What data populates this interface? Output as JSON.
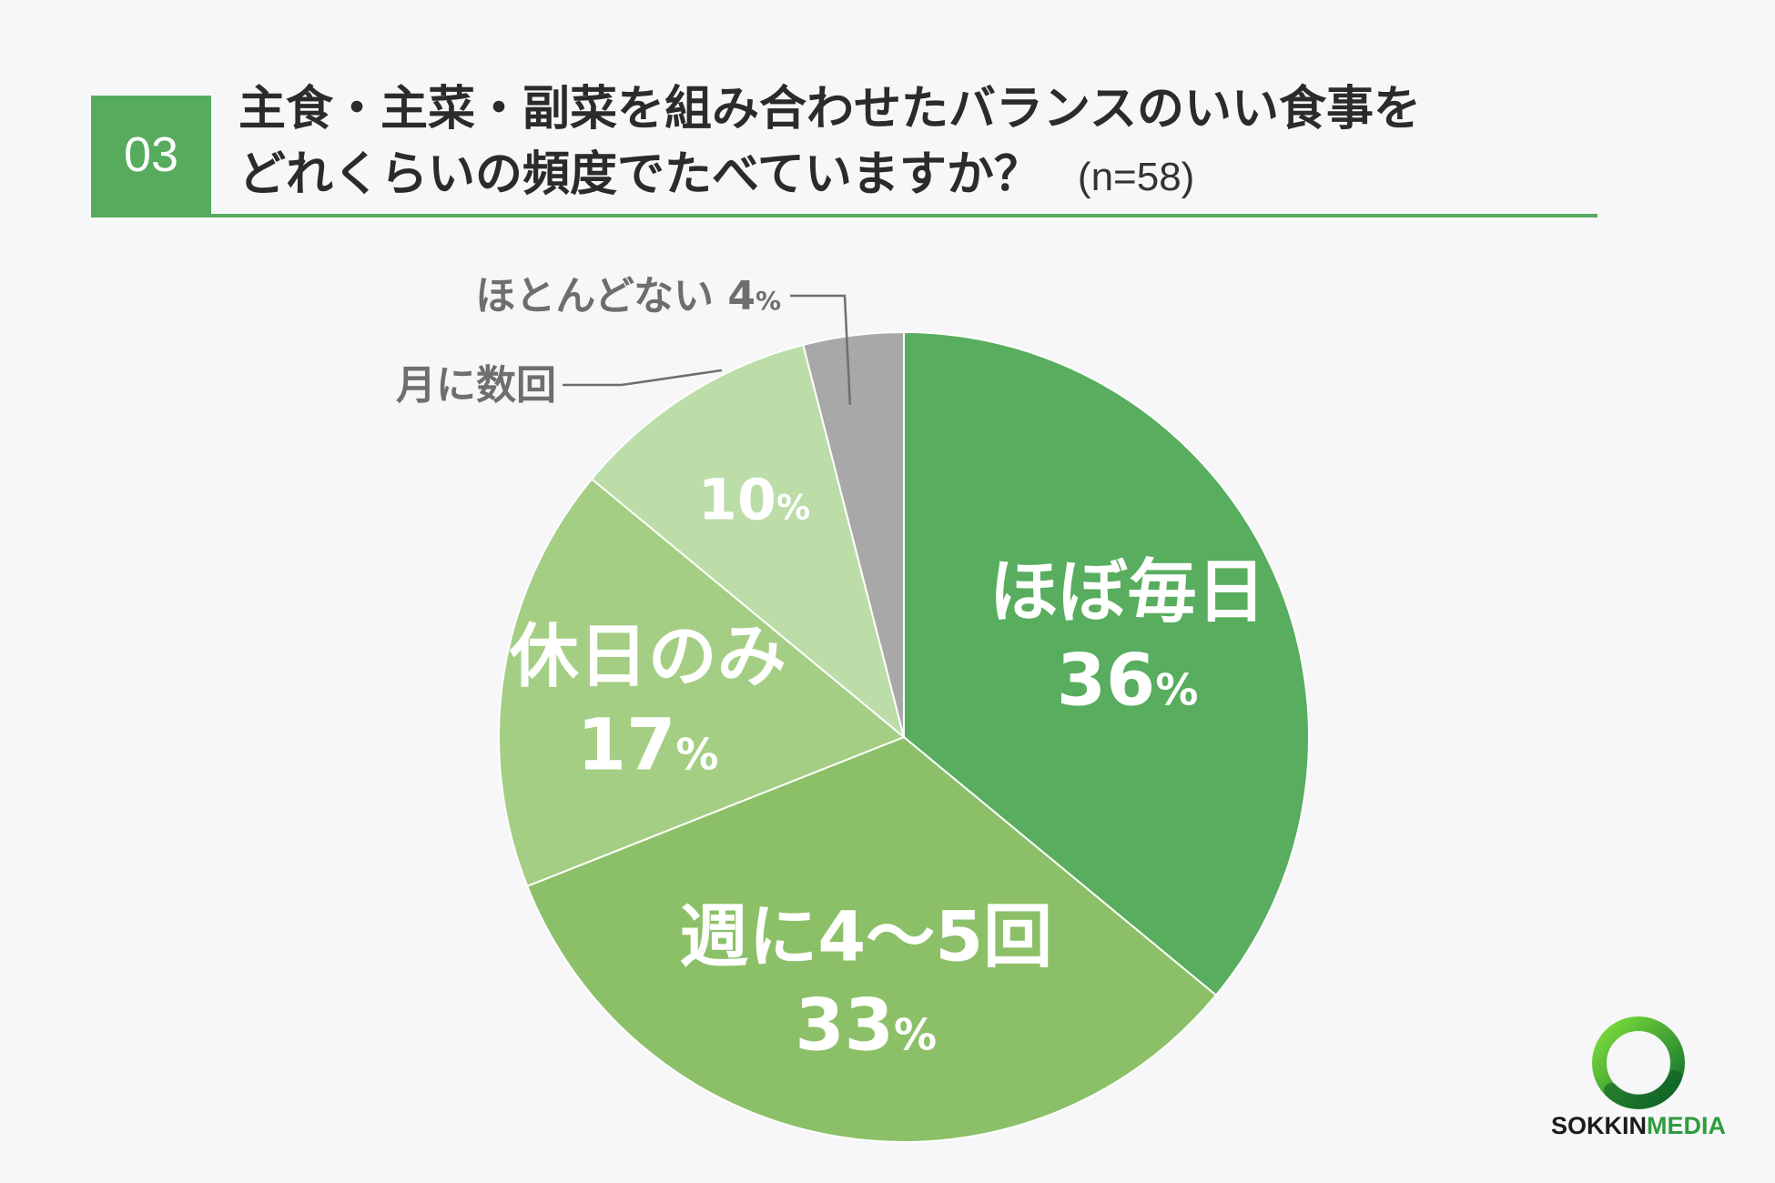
{
  "header": {
    "number": "03",
    "title_line1": "主食・主菜・副菜を組み合わせたバランスのいい食事を",
    "title_line2": "どれくらいの頻度でたべていますか？",
    "sample": "(n=58)"
  },
  "colors": {
    "accent": "#56ab5d",
    "slices": [
      "#58ad5e",
      "#8cc068",
      "#a4ce84",
      "#bcdca8",
      "#a8a8a8"
    ],
    "callout_text": "#6e6e6e"
  },
  "chart_data": {
    "type": "pie",
    "unit": "%",
    "slices": [
      {
        "label": "ほぼ毎日",
        "value": 36
      },
      {
        "label": "週に4～5回",
        "value": 33
      },
      {
        "label": "休日のみ",
        "value": 17
      },
      {
        "label": "月に数回",
        "value": 10
      },
      {
        "label": "ほとんどない",
        "value": 4
      }
    ]
  },
  "logo": {
    "part1": "SOKKIN",
    "part2": "MEDIA"
  }
}
